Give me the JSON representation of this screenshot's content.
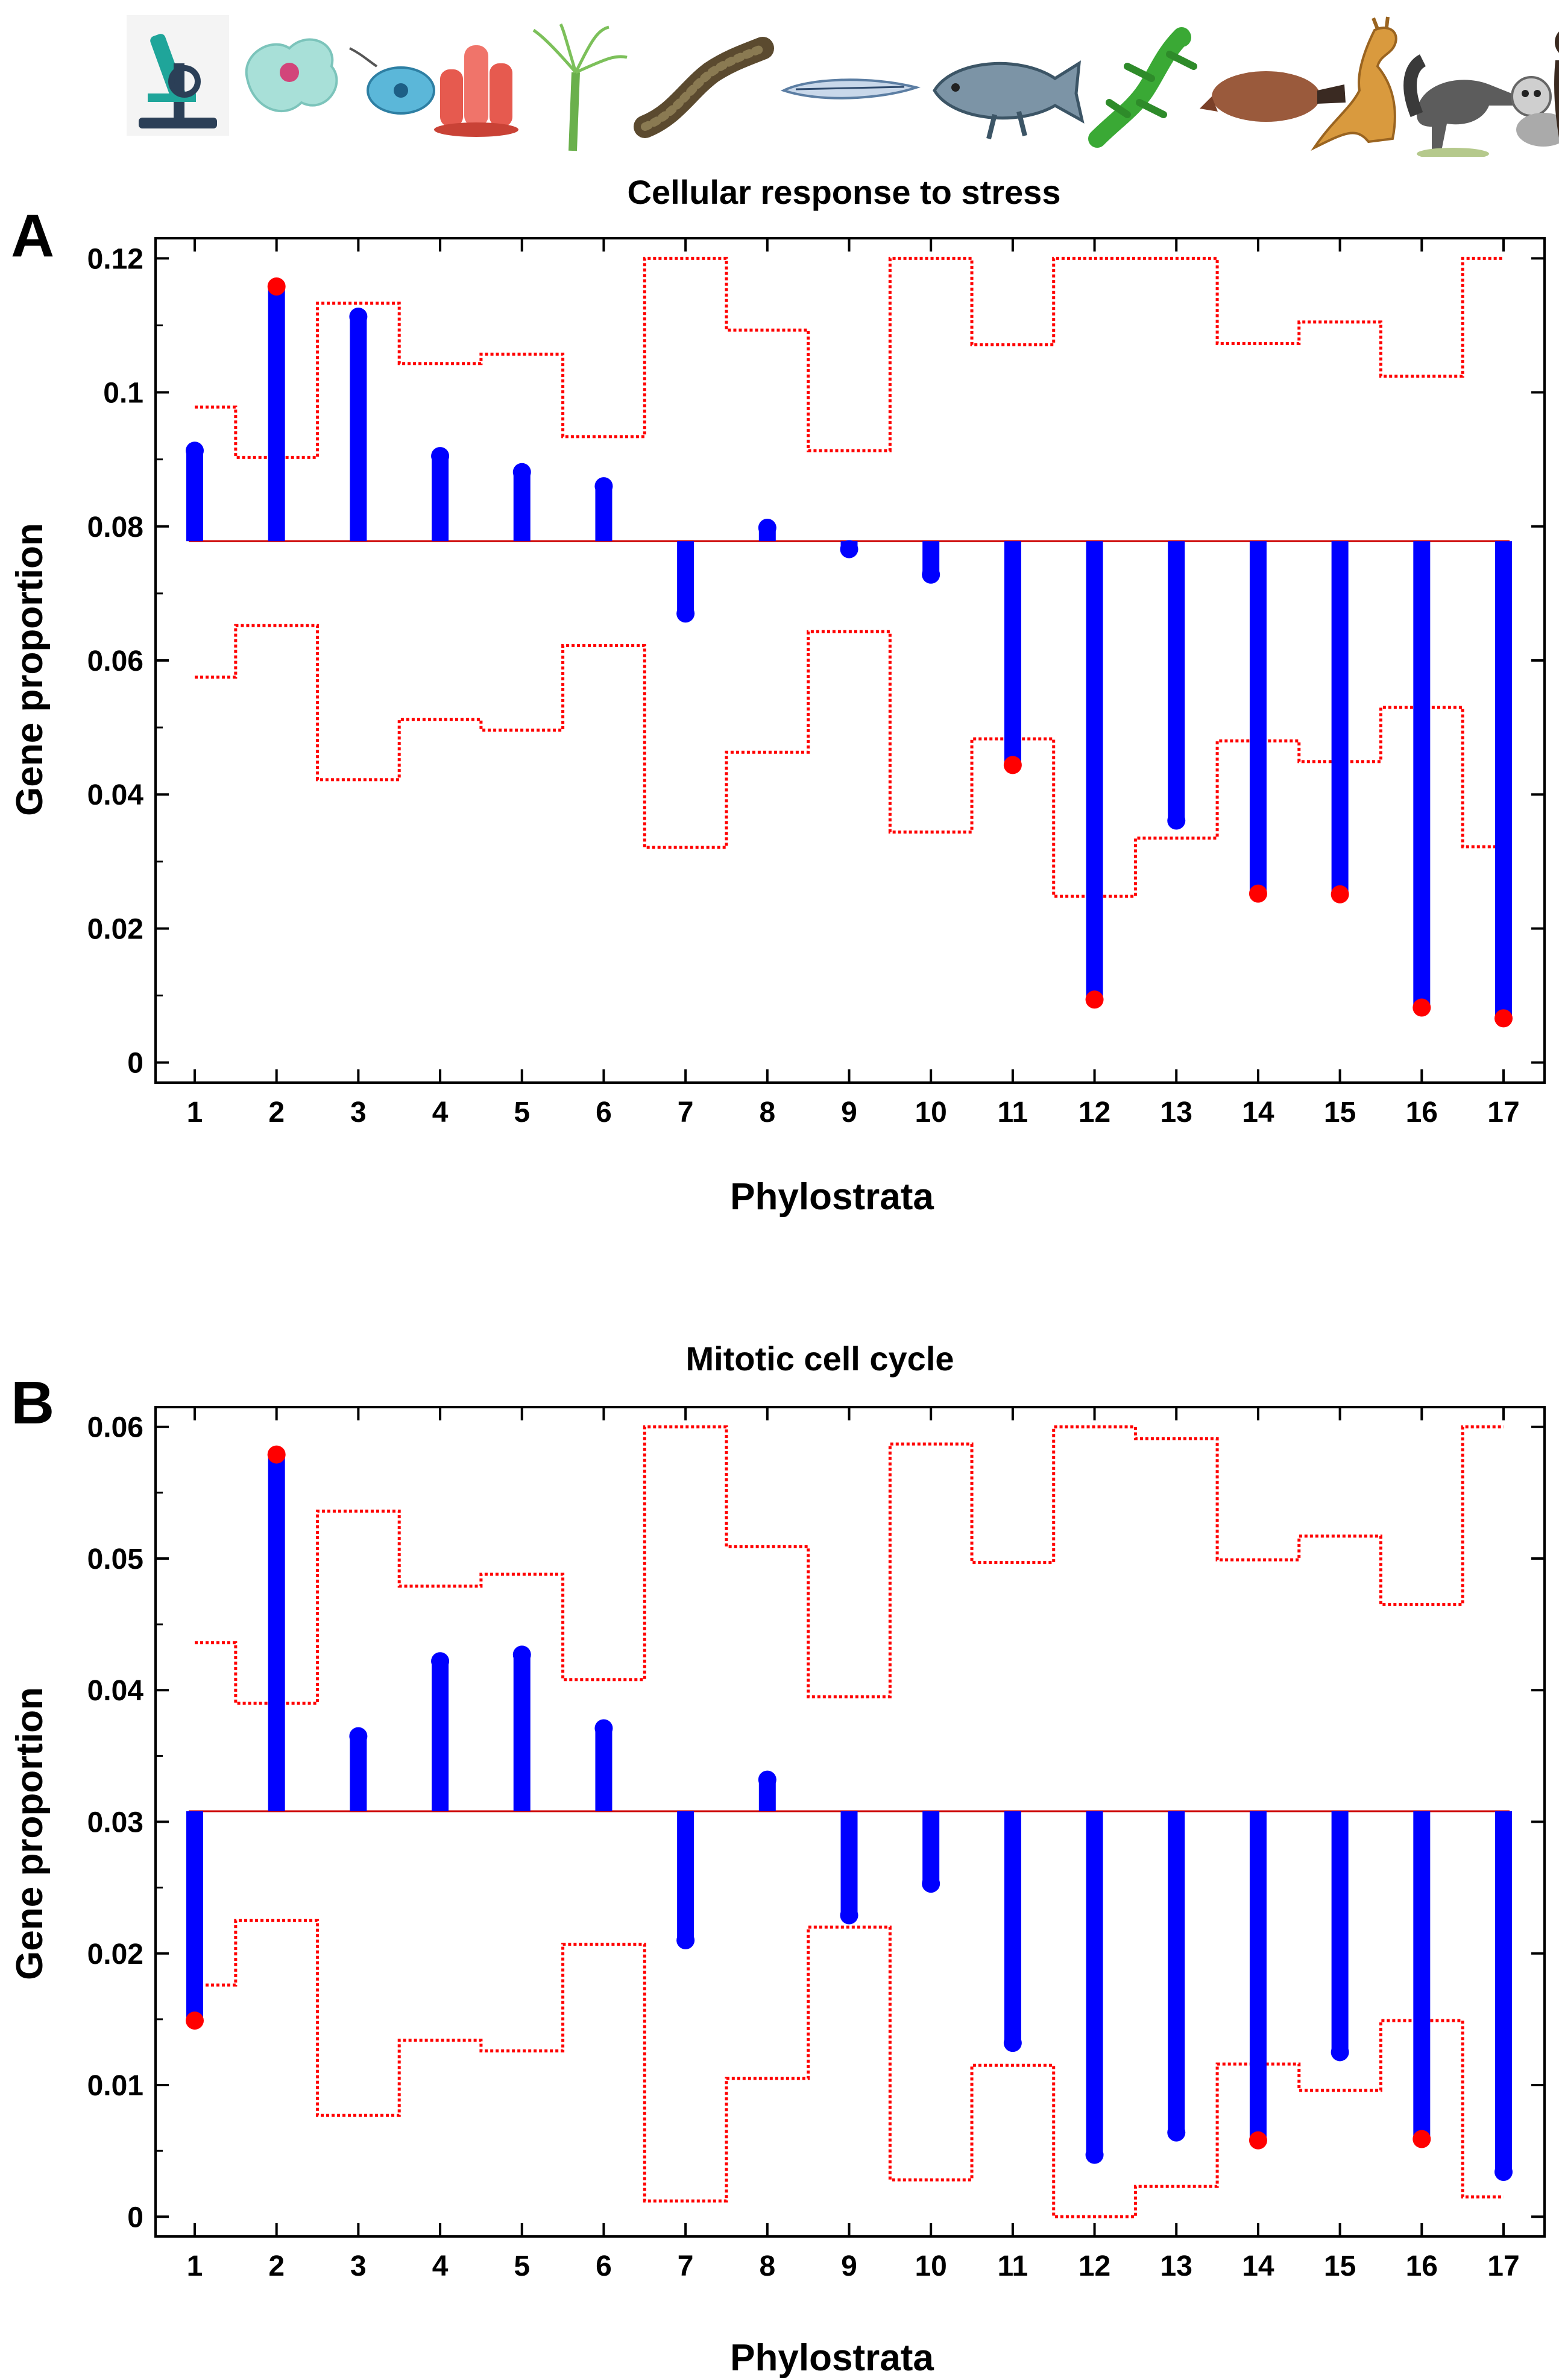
{
  "icons": [
    "microscope-icon",
    "amoeba-icon",
    "protist-icon",
    "sponge-icon",
    "hydra-icon",
    "worm-icon",
    "lancelet-icon",
    "coelacanth-icon",
    "lizard-icon",
    "platypus-icon",
    "kangaroo-icon",
    "anteater-icon",
    "lemur-icon",
    "chimpanzee-icon"
  ],
  "colors": {
    "bar": "#0000ff",
    "band": "#ff0000",
    "sig": "#ff0000",
    "baseline": "#cc0000"
  },
  "chart_data": [
    {
      "type": "bar",
      "panel_label": "A",
      "title": "Cellular response to stress",
      "xlabel": "Phylostrata",
      "ylabel": "Gene proportion",
      "categories": [
        "1",
        "2",
        "3",
        "4",
        "5",
        "6",
        "7",
        "8",
        "9",
        "10",
        "11",
        "12",
        "13",
        "14",
        "15",
        "16",
        "17"
      ],
      "baseline": 0.0778,
      "values": [
        0.0913,
        0.1158,
        0.1113,
        0.0905,
        0.0881,
        0.086,
        0.067,
        0.0798,
        0.0766,
        0.0728,
        0.0444,
        0.0094,
        0.0361,
        0.0252,
        0.0251,
        0.0082,
        0.0066
      ],
      "significant": [
        false,
        true,
        false,
        false,
        false,
        false,
        false,
        false,
        false,
        false,
        true,
        true,
        false,
        true,
        true,
        true,
        true
      ],
      "upper_band": [
        0.0978,
        0.0903,
        0.1133,
        0.1043,
        0.1057,
        0.0934,
        0.12,
        0.1093,
        0.0913,
        0.12,
        0.1071,
        0.12,
        0.12,
        0.1073,
        0.1105,
        0.1024,
        0.12
      ],
      "lower_band": [
        0.0575,
        0.0652,
        0.0422,
        0.0512,
        0.0496,
        0.0622,
        0.0321,
        0.0463,
        0.0643,
        0.0344,
        0.0483,
        0.0248,
        0.0335,
        0.048,
        0.0449,
        0.053,
        0.0322
      ],
      "ylim": [
        -0.003,
        0.123
      ],
      "yticks": [
        0,
        0.02,
        0.04,
        0.06,
        0.08,
        0.1,
        0.12
      ],
      "ytick_labels": [
        "0",
        "0.02",
        "0.04",
        "0.06",
        "0.08",
        "0.1",
        "0.12"
      ]
    },
    {
      "type": "bar",
      "panel_label": "B",
      "title": "Mitotic cell cycle",
      "xlabel": "Phylostrata",
      "ylabel": "Gene proportion",
      "categories": [
        "1",
        "2",
        "3",
        "4",
        "5",
        "6",
        "7",
        "8",
        "9",
        "10",
        "11",
        "12",
        "13",
        "14",
        "15",
        "16",
        "17"
      ],
      "baseline": 0.0308,
      "values": [
        0.0149,
        0.0579,
        0.0365,
        0.0422,
        0.0427,
        0.0371,
        0.021,
        0.0332,
        0.0229,
        0.0253,
        0.0132,
        0.0047,
        0.0064,
        0.0058,
        0.0125,
        0.0059,
        0.0034
      ],
      "significant": [
        true,
        true,
        false,
        false,
        false,
        false,
        false,
        false,
        false,
        false,
        false,
        false,
        false,
        true,
        false,
        true,
        false
      ],
      "upper_band": [
        0.0436,
        0.039,
        0.0536,
        0.0479,
        0.0488,
        0.0408,
        0.06,
        0.0509,
        0.0395,
        0.0587,
        0.0497,
        0.06,
        0.0591,
        0.0499,
        0.0517,
        0.0465,
        0.06
      ],
      "lower_band": [
        0.0176,
        0.0225,
        0.0077,
        0.0134,
        0.0126,
        0.0207,
        0.0012,
        0.0105,
        0.022,
        0.0028,
        0.0115,
        0.0,
        0.0023,
        0.0116,
        0.0096,
        0.0149,
        0.0015
      ],
      "ylim": [
        -0.0015,
        0.0615
      ],
      "yticks": [
        0,
        0.01,
        0.02,
        0.03,
        0.04,
        0.05,
        0.06
      ],
      "ytick_labels": [
        "0",
        "0.01",
        "0.02",
        "0.03",
        "0.04",
        "0.05",
        "0.06"
      ]
    }
  ]
}
